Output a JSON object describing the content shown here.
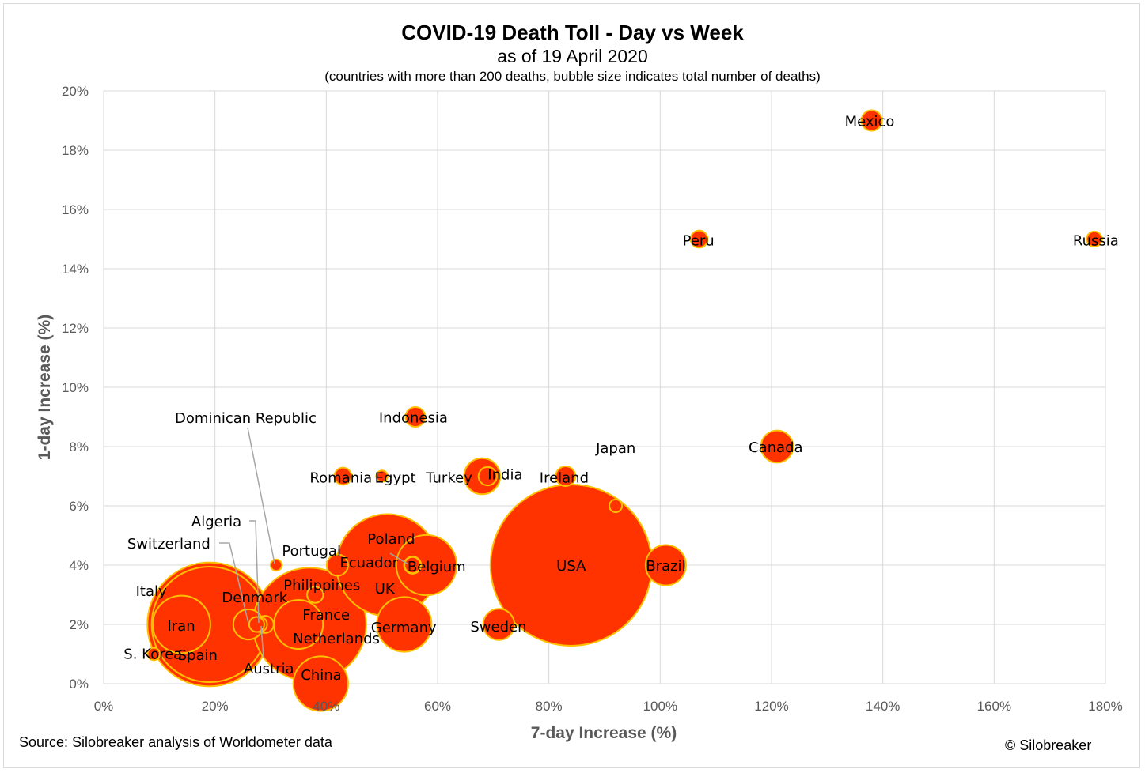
{
  "title": "COVID-19 Death Toll - Day vs Week",
  "subtitle": "as of 19 April 2020",
  "note": "(countries with more than 200 deaths, bubble size indicates total number of deaths)",
  "source": "Source: Silobreaker analysis of Worldometer data",
  "copyright": "© Silobreaker",
  "colors": {
    "bubble_fill": "#ff3300",
    "bubble_stroke": "#ffc000",
    "grid": "#d9d9d9",
    "axis_text": "#595959"
  },
  "chart_data": {
    "type": "scatter",
    "subtype": "bubble",
    "xlabel": "7-day Increase (%)",
    "ylabel": "1-day Increase (%)",
    "xlim": [
      0,
      180
    ],
    "ylim": [
      0,
      20
    ],
    "x_ticks": [
      "0%",
      "20%",
      "40%",
      "60%",
      "80%",
      "100%",
      "120%",
      "140%",
      "160%",
      "180%"
    ],
    "y_ticks": [
      "0%",
      "2%",
      "4%",
      "6%",
      "8%",
      "10%",
      "12%",
      "14%",
      "16%",
      "18%",
      "20%"
    ],
    "grid": true,
    "points": [
      {
        "name": "USA",
        "x": 84,
        "y": 4,
        "deaths": 40000
      },
      {
        "name": "Spain",
        "x": 19,
        "y": 2,
        "deaths": 20500
      },
      {
        "name": "Italy",
        "x": 19,
        "y": 2,
        "deaths": 23600
      },
      {
        "name": "France",
        "x": 37,
        "y": 2,
        "deaths": 19700
      },
      {
        "name": "UK",
        "x": 51,
        "y": 4,
        "deaths": 16000
      },
      {
        "name": "Belgium",
        "x": 58,
        "y": 4,
        "deaths": 5600
      },
      {
        "name": "Iran",
        "x": 14,
        "y": 2,
        "deaths": 5100
      },
      {
        "name": "China",
        "x": 39,
        "y": 0,
        "deaths": 4600
      },
      {
        "name": "Germany",
        "x": 54,
        "y": 2,
        "deaths": 4600
      },
      {
        "name": "Netherlands",
        "x": 35,
        "y": 2,
        "deaths": 3700
      },
      {
        "name": "Brazil",
        "x": 101,
        "y": 4,
        "deaths": 2500
      },
      {
        "name": "Turkey",
        "x": 68,
        "y": 7,
        "deaths": 2000
      },
      {
        "name": "Canada",
        "x": 121,
        "y": 8,
        "deaths": 1600
      },
      {
        "name": "Sweden",
        "x": 71,
        "y": 2,
        "deaths": 1500
      },
      {
        "name": "Switzerland",
        "x": 26,
        "y": 2,
        "deaths": 1400
      },
      {
        "name": "Mexico",
        "x": 138,
        "y": 19,
        "deaths": 650
      },
      {
        "name": "Ireland",
        "x": 83,
        "y": 7,
        "deaths": 600
      },
      {
        "name": "Portugal",
        "x": 42,
        "y": 4,
        "deaths": 700
      },
      {
        "name": "Indonesia",
        "x": 56,
        "y": 9,
        "deaths": 600
      },
      {
        "name": "India",
        "x": 69,
        "y": 7,
        "deaths": 520
      },
      {
        "name": "Russia",
        "x": 178,
        "y": 15,
        "deaths": 360
      },
      {
        "name": "Peru",
        "x": 107,
        "y": 15,
        "deaths": 450
      },
      {
        "name": "Romania",
        "x": 43,
        "y": 7,
        "deaths": 450
      },
      {
        "name": "Philippines",
        "x": 38,
        "y": 3,
        "deaths": 400
      },
      {
        "name": "Ecuador",
        "x": 55.5,
        "y": 4,
        "deaths": 450
      },
      {
        "name": "Poland",
        "x": 55.5,
        "y": 4,
        "deaths": 400
      },
      {
        "name": "Austria",
        "x": 29,
        "y": 2,
        "deaths": 450
      },
      {
        "name": "Algeria",
        "x": 28,
        "y": 2,
        "deaths": 360
      },
      {
        "name": "Denmark",
        "x": 27.5,
        "y": 2,
        "deaths": 350
      },
      {
        "name": "Egypt",
        "x": 50,
        "y": 7,
        "deaths": 200
      },
      {
        "name": "Japan",
        "x": 92,
        "y": 6,
        "deaths": 250
      },
      {
        "name": "S. Korea",
        "x": 9,
        "y": 1,
        "deaths": 235
      },
      {
        "name": "Dominican Republic",
        "x": 31,
        "y": 4,
        "deaths": 200
      }
    ]
  }
}
